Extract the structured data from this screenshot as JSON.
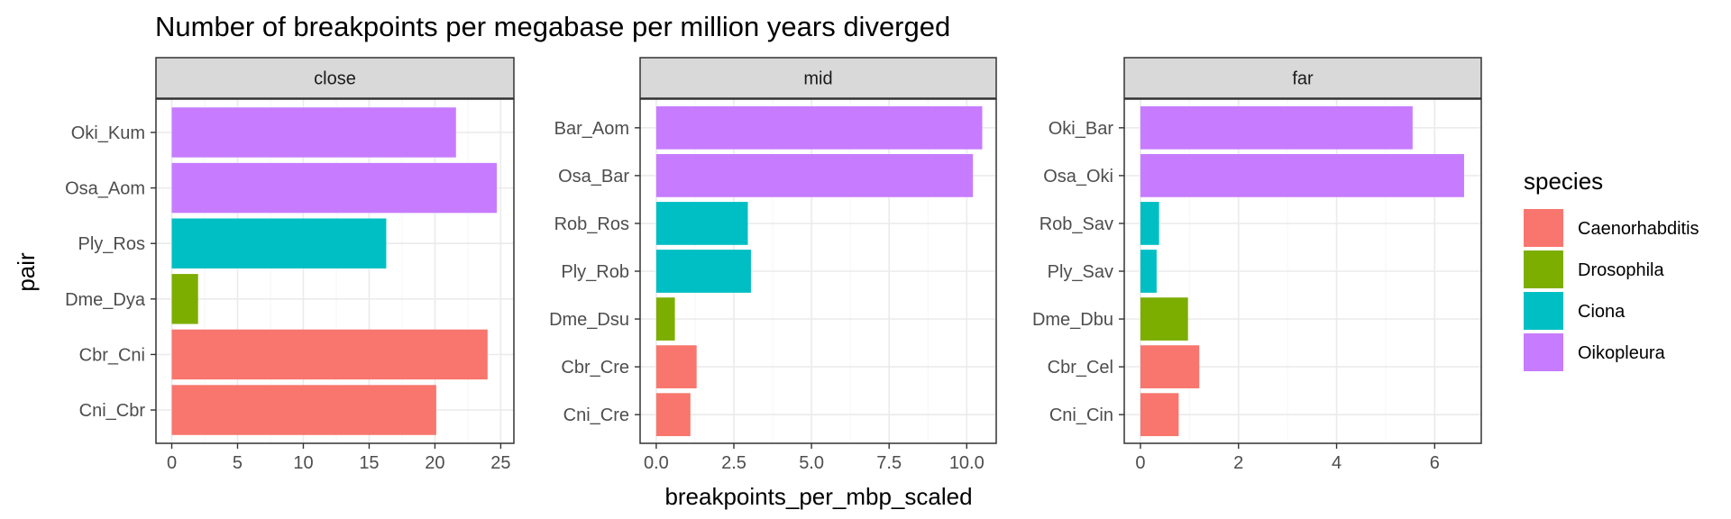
{
  "chart_data": {
    "type": "bar",
    "orientation": "horizontal",
    "title": "Number of breakpoints per megabase per million years diverged",
    "xlabel": "breakpoints_per_mbp_scaled",
    "ylabel": "pair",
    "grid": true,
    "legend": {
      "title": "species",
      "placement": "right",
      "entries": [
        {
          "name": "Caenorhabditis",
          "color": "#F8766D"
        },
        {
          "name": "Drosophila",
          "color": "#7CAE00"
        },
        {
          "name": "Ciona",
          "color": "#00BFC4"
        },
        {
          "name": "Oikopleura",
          "color": "#C77CFF"
        }
      ]
    },
    "panels": [
      {
        "facet": "close",
        "xlim": [
          -1.2,
          26
        ],
        "xticks": [
          0,
          5,
          10,
          15,
          20,
          25
        ],
        "xtick_labels": [
          "0",
          "5",
          "10",
          "15",
          "20",
          "25"
        ],
        "bars": [
          {
            "pair": "Cni_Cbr",
            "species": "Caenorhabditis",
            "value": 20.1
          },
          {
            "pair": "Cbr_Cni",
            "species": "Caenorhabditis",
            "value": 24.0
          },
          {
            "pair": "Dme_Dya",
            "species": "Drosophila",
            "value": 2.0
          },
          {
            "pair": "Ply_Ros",
            "species": "Ciona",
            "value": 16.3
          },
          {
            "pair": "Osa_Aom",
            "species": "Oikopleura",
            "value": 24.7
          },
          {
            "pair": "Oki_Kum",
            "species": "Oikopleura",
            "value": 21.6
          }
        ]
      },
      {
        "facet": "mid",
        "xlim": [
          -0.52,
          10.95
        ],
        "xticks": [
          0,
          2.5,
          5,
          7.5,
          10
        ],
        "xtick_labels": [
          "0.0",
          "2.5",
          "5.0",
          "7.5",
          "10.0"
        ],
        "bars": [
          {
            "pair": "Cni_Cre",
            "species": "Caenorhabditis",
            "value": 1.1
          },
          {
            "pair": "Cbr_Cre",
            "species": "Caenorhabditis",
            "value": 1.3
          },
          {
            "pair": "Dme_Dsu",
            "species": "Drosophila",
            "value": 0.6
          },
          {
            "pair": "Ply_Rob",
            "species": "Ciona",
            "value": 3.05
          },
          {
            "pair": "Rob_Ros",
            "species": "Ciona",
            "value": 2.95
          },
          {
            "pair": "Osa_Bar",
            "species": "Oikopleura",
            "value": 10.2
          },
          {
            "pair": "Bar_Aom",
            "species": "Oikopleura",
            "value": 10.5
          }
        ]
      },
      {
        "facet": "far",
        "xlim": [
          -0.33,
          6.95
        ],
        "xticks": [
          0,
          2,
          4,
          6
        ],
        "xtick_labels": [
          "0",
          "2",
          "4",
          "6"
        ],
        "bars": [
          {
            "pair": "Cni_Cin",
            "species": "Caenorhabditis",
            "value": 0.78
          },
          {
            "pair": "Cbr_Cel",
            "species": "Caenorhabditis",
            "value": 1.2
          },
          {
            "pair": "Dme_Dbu",
            "species": "Drosophila",
            "value": 0.97
          },
          {
            "pair": "Ply_Sav",
            "species": "Ciona",
            "value": 0.33
          },
          {
            "pair": "Rob_Sav",
            "species": "Ciona",
            "value": 0.38
          },
          {
            "pair": "Osa_Oki",
            "species": "Oikopleura",
            "value": 6.6
          },
          {
            "pair": "Oki_Bar",
            "species": "Oikopleura",
            "value": 5.55
          }
        ]
      }
    ]
  }
}
